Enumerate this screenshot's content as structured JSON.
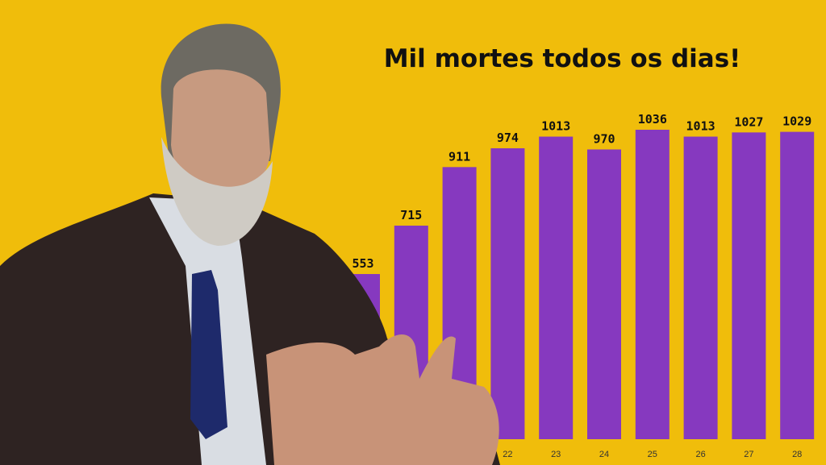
{
  "chart_data": {
    "type": "bar",
    "title": "Mil mortes todos os dias!",
    "categories": [
      null,
      null,
      null,
      "22",
      "23",
      "24",
      "25",
      "26",
      "27",
      "28"
    ],
    "values": [
      553,
      715,
      911,
      974,
      1013,
      970,
      1036,
      1013,
      1027,
      1029
    ],
    "color": "#8639bf"
  }
}
